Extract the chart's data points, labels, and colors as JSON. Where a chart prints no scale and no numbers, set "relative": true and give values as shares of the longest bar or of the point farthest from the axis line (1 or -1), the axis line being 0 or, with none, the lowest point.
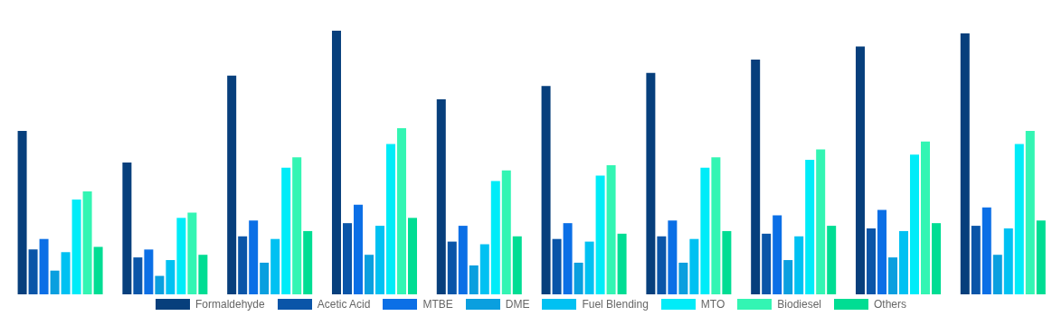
{
  "chart_data": {
    "type": "bar",
    "relative": true,
    "categories": [
      null,
      null,
      null,
      null,
      null,
      null,
      null,
      null,
      null,
      null
    ],
    "legend": "bottom",
    "grid": false,
    "series": [
      {
        "name": "Formaldehyde",
        "color": "#073f7c",
        "values": [
          0.62,
          0.5,
          0.83,
          1,
          0.74,
          0.79,
          0.84,
          0.89,
          0.94,
          0.99
        ]
      },
      {
        "name": "Acetic Acid",
        "color": "#0a55a8",
        "values": [
          0.17,
          0.14,
          0.22,
          0.27,
          0.2,
          0.21,
          0.22,
          0.23,
          0.25,
          0.26
        ]
      },
      {
        "name": "MTBE",
        "color": "#0b6fe6",
        "values": [
          0.21,
          0.17,
          0.28,
          0.34,
          0.26,
          0.27,
          0.28,
          0.3,
          0.32,
          0.33
        ]
      },
      {
        "name": "DME",
        "color": "#0a9fdf",
        "values": [
          0.09,
          0.07,
          0.12,
          0.15,
          0.11,
          0.12,
          0.12,
          0.13,
          0.14,
          0.15
        ]
      },
      {
        "name": "Fuel Blending",
        "color": "#00c1f2",
        "values": [
          0.16,
          0.13,
          0.21,
          0.26,
          0.19,
          0.2,
          0.21,
          0.22,
          0.24,
          0.25
        ]
      },
      {
        "name": "MTO",
        "color": "#00ecf8",
        "values": [
          0.36,
          0.29,
          0.48,
          0.57,
          0.43,
          0.45,
          0.48,
          0.51,
          0.53,
          0.57
        ]
      },
      {
        "name": "Biodiesel",
        "color": "#33f5b3",
        "values": [
          0.39,
          0.31,
          0.52,
          0.63,
          0.47,
          0.49,
          0.52,
          0.55,
          0.58,
          0.62
        ]
      },
      {
        "name": "Others",
        "color": "#00dd93",
        "values": [
          0.18,
          0.15,
          0.24,
          0.29,
          0.22,
          0.23,
          0.24,
          0.26,
          0.27,
          0.28
        ]
      }
    ]
  }
}
